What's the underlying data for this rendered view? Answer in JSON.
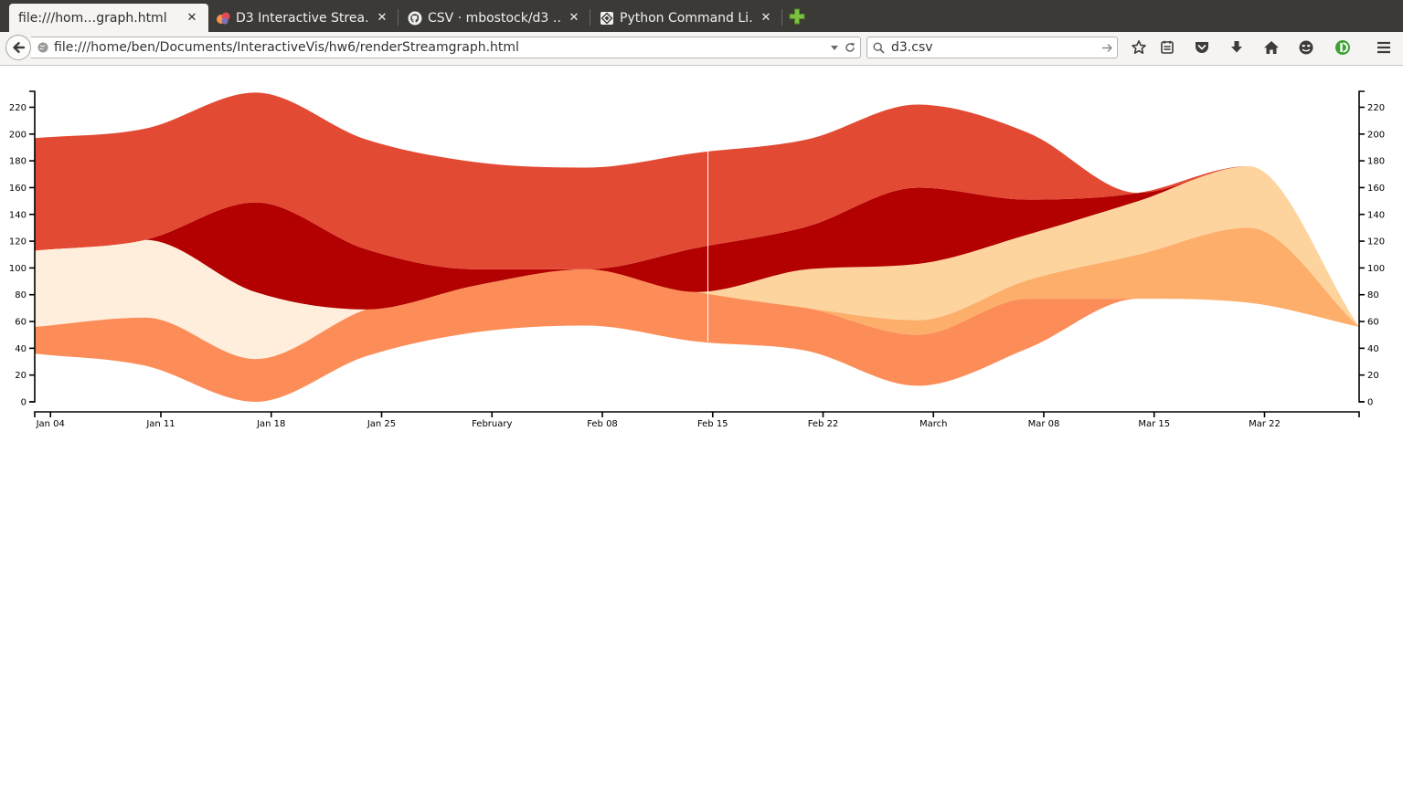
{
  "browser": {
    "tabs": [
      {
        "title": "file:///hom…graph.html",
        "active": true,
        "icon": "none"
      },
      {
        "title": "D3 Interactive Strea…",
        "active": false,
        "icon": "d3-logo-icon"
      },
      {
        "title": "CSV · mbostock/d3 …",
        "active": false,
        "icon": "github-icon"
      },
      {
        "title": "Python Command Li…",
        "active": false,
        "icon": "python-docs-icon"
      }
    ],
    "tab_close_glyph": "✕",
    "new_tab_icon": "plus-icon",
    "url": "file:///home/ben/Documents/InteractiveVis/hw6/renderStreamgraph.html",
    "search_value": "d3.csv",
    "toolbar_icons": [
      "bookmark-star-icon",
      "reading-list-icon",
      "pocket-icon",
      "download-icon",
      "home-icon",
      "emoji-icon",
      "extension-icon",
      "menu-icon"
    ],
    "colors": {
      "tabstrip": "#3b3a36",
      "toolbar": "#f5f4f2",
      "new_tab_plus": "#7cc142",
      "extension": "#3ca332"
    }
  },
  "chart_data": {
    "type": "area",
    "subtype": "streamgraph",
    "title": "",
    "xlabel": "",
    "ylabel": "",
    "x": [
      "2015-01-03",
      "2015-01-10",
      "2015-01-17",
      "2015-01-24",
      "2015-01-31",
      "2015-02-07",
      "2015-02-14",
      "2015-02-21",
      "2015-02-28",
      "2015-03-07",
      "2015-03-14",
      "2015-03-21",
      "2015-03-28"
    ],
    "baseline": [
      36,
      27,
      0,
      34,
      52,
      57,
      45,
      38,
      12,
      40,
      77,
      74,
      56
    ],
    "series": [
      {
        "color": "#fc8d59",
        "values": [
          20,
          36,
          32,
          35,
          35,
          42,
          37,
          32,
          38,
          37,
          0,
          0,
          0
        ]
      },
      {
        "color": "#fdae6b",
        "values": [
          0,
          0,
          0,
          0,
          0,
          0,
          0,
          0,
          11,
          14,
          33,
          56,
          0
        ]
      },
      {
        "color": "#fdd49e",
        "values": [
          0,
          0,
          0,
          0,
          0,
          0,
          0,
          29,
          42,
          34,
          40,
          46,
          0
        ]
      },
      {
        "color": "#feeedb",
        "values": [
          57,
          58,
          50,
          0,
          0,
          0,
          0,
          0,
          0,
          0,
          0,
          0,
          0
        ]
      },
      {
        "color": "#b30000",
        "values": [
          0,
          0,
          67,
          45,
          12,
          0,
          33,
          32,
          57,
          26,
          6,
          0,
          0
        ]
      },
      {
        "color": "#e34a33",
        "values": [
          84,
          83,
          82,
          82,
          80,
          76,
          71,
          65,
          62,
          50,
          0,
          0,
          0
        ]
      }
    ],
    "ylim": [
      0,
      232
    ],
    "yticks": [
      "0",
      "20",
      "40",
      "60",
      "80",
      "100",
      "120",
      "140",
      "160",
      "180",
      "200",
      "220"
    ],
    "xticks": [
      "Jan 04",
      "Jan 11",
      "Jan 18",
      "Jan 25",
      "February",
      "Feb 08",
      "Feb 15",
      "Feb 22",
      "March",
      "Mar 08",
      "Mar 15",
      "Mar 22"
    ],
    "xtick_dates": [
      "2015-01-04",
      "2015-01-11",
      "2015-01-18",
      "2015-01-25",
      "2015-02-01",
      "2015-02-08",
      "2015-02-15",
      "2015-02-22",
      "2015-03-01",
      "2015-03-08",
      "2015-03-15",
      "2015-03-22"
    ],
    "hover_date": "2015-02-14",
    "grid": false,
    "legend": "none"
  }
}
